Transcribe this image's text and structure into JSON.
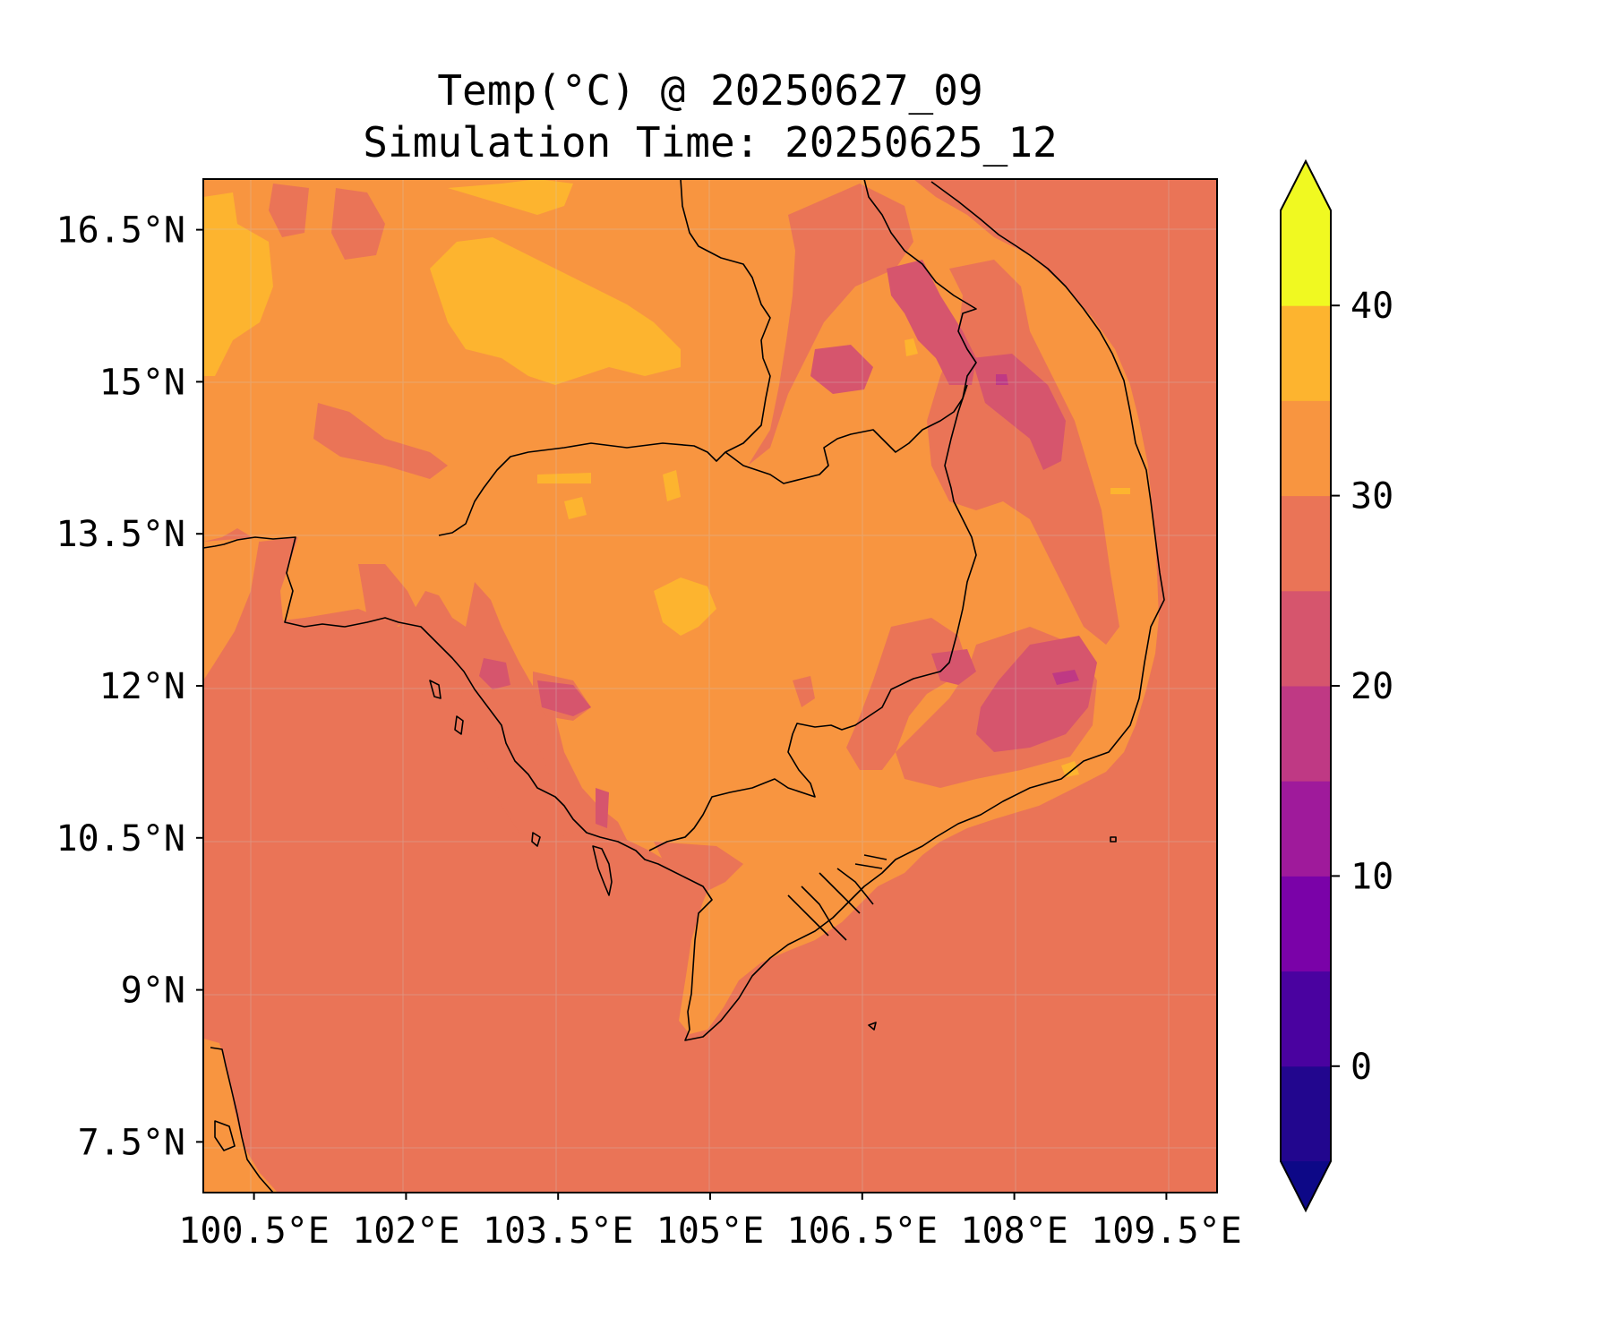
{
  "figure": {
    "title_line1": "Temp(°C) @ 20250627_09",
    "title_line2": "Simulation Time: 20250625_12"
  },
  "map": {
    "variable": "Temp(°C)",
    "x_ticks": [
      "100.5°E",
      "102°E",
      "103.5°E",
      "105°E",
      "106.5°E",
      "108°E",
      "109.5°E"
    ],
    "y_ticks": [
      "16.5°N",
      "15°N",
      "13.5°N",
      "12°N",
      "10.5°N",
      "9°N",
      "7.5°N"
    ],
    "lon_range": [
      100.0,
      110.0
    ],
    "lat_range": [
      7.0,
      17.0
    ],
    "gridlines": true,
    "ocean_band": "25-30",
    "land_band": "30-35"
  },
  "colorbar": {
    "ticks": [
      "40",
      "30",
      "20",
      "10",
      "0"
    ],
    "levels": [
      -5,
      0,
      5,
      10,
      15,
      20,
      25,
      30,
      35,
      40,
      45
    ],
    "colors": [
      "#22068e",
      "#4a02a0",
      "#7a02a8",
      "#9f1a9b",
      "#bf3984",
      "#d6556d",
      "#ea7457",
      "#f89540",
      "#fdb42f",
      "#f0f921"
    ],
    "extend": "both",
    "under_color": "#0d0887",
    "over_color": "#f0f921"
  }
}
